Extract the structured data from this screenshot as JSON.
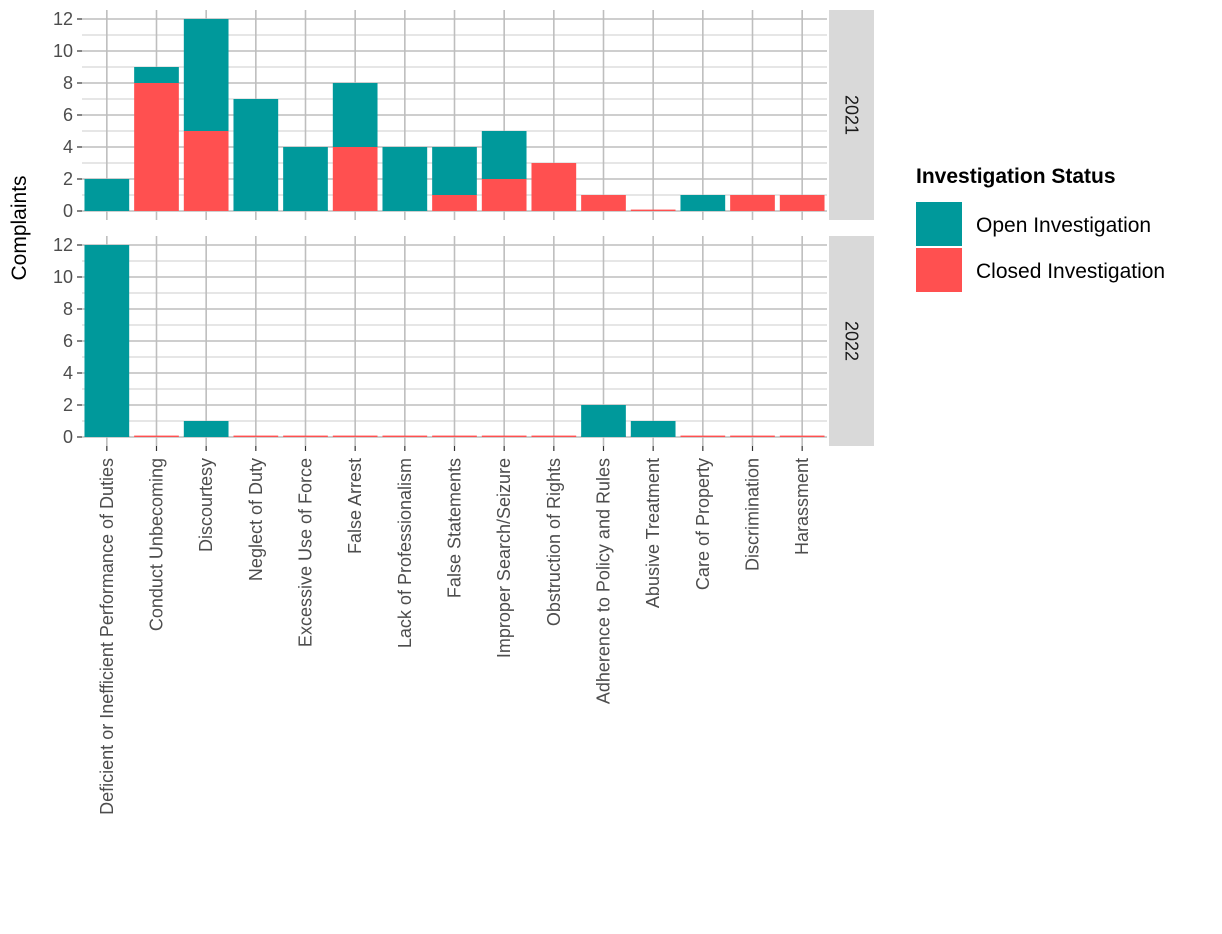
{
  "chart_data": {
    "type": "bar",
    "stacked": true,
    "title": "",
    "xlabel": "",
    "ylabel": "Complaints",
    "ylim": [
      0,
      12
    ],
    "yticks": [
      0,
      2,
      4,
      6,
      8,
      10,
      12
    ],
    "grid": true,
    "legend": {
      "title": "Investigation Status",
      "position": "right",
      "entries": [
        {
          "name": "Open Investigation",
          "color": "#00999B"
        },
        {
          "name": "Closed Investigation",
          "color": "#FF5050"
        }
      ]
    },
    "categories": [
      "Deficient or Inefficient Performance of Duties",
      "Conduct Unbecoming",
      "Discourtesy",
      "Neglect of Duty",
      "Excessive Use of Force",
      "False Arrest",
      "Lack of Professionalism",
      "False Statements",
      "Improper Search/Seizure",
      "Obstruction of Rights",
      "Adherence to Policy and Rules",
      "Abusive Treatment",
      "Care of Property",
      "Discrimination",
      "Harassment"
    ],
    "facets": [
      {
        "label": "2021",
        "series": [
          {
            "name": "Closed Investigation",
            "values": [
              0,
              8,
              5,
              0,
              0,
              4,
              0,
              1,
              2,
              3,
              1,
              0,
              0,
              1,
              1
            ]
          },
          {
            "name": "Open Investigation",
            "values": [
              2,
              1,
              7,
              7,
              4,
              4,
              4,
              3,
              3,
              0,
              0,
              0,
              1,
              0,
              0
            ]
          }
        ]
      },
      {
        "label": "2022",
        "series": [
          {
            "name": "Closed Investigation",
            "values": [
              0,
              0,
              0,
              0,
              0,
              0,
              0,
              0,
              0,
              0,
              0,
              0,
              0,
              0,
              0
            ]
          },
          {
            "name": "Open Investigation",
            "values": [
              12,
              0,
              1,
              0,
              0,
              0,
              0,
              0,
              0,
              0,
              2,
              1,
              0,
              0,
              0
            ]
          }
        ]
      }
    ],
    "colors": {
      "panel_bg": "#FFFFFF",
      "grid": "#BEBEBE",
      "strip_bg": "#D9D9D9",
      "axis_text": "#4D4D4D"
    }
  }
}
